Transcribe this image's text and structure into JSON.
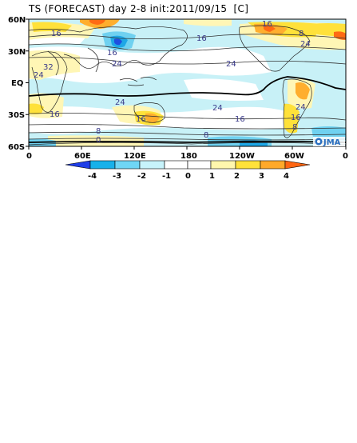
{
  "title": {
    "text": "TS (FORECAST) day 2-8 init:2011/09/15  [C]"
  },
  "map": {
    "lat_labels": [
      "60N",
      "30N",
      "EQ",
      "30S",
      "60S"
    ],
    "lon_labels": [
      "0",
      "60E",
      "120E",
      "180",
      "120W",
      "60W",
      "0"
    ],
    "contour_labels": [
      "16",
      "16",
      "16",
      "24",
      "32",
      "24",
      "24",
      "24",
      "24",
      "24",
      "16",
      "16",
      "16",
      "8",
      "0",
      "8",
      "24",
      "16",
      "8",
      "8",
      "16"
    ],
    "logo_text": "JMA",
    "shading_colors": {
      "minus4": "#1f4fe0",
      "minus3": "#1ea7e6",
      "minus2": "#6fd1f0",
      "minus1": "#c8f1f7",
      "zero": "#ffffff",
      "plus1": "#fff6b5",
      "plus2": "#ffe13a",
      "plus3": "#ffae2e",
      "plus4": "#ff6a14"
    }
  },
  "colorbar": {
    "labels": [
      "-4",
      "-3",
      "-2",
      "-1",
      "0",
      "1",
      "2",
      "3",
      "4"
    ],
    "colors": [
      "#1f3ee8",
      "#17b1ea",
      "#6fd6f5",
      "#c7f3fb",
      "#ffffff",
      "#fff7ad",
      "#ffe23a",
      "#ffa92a",
      "#ff6512"
    ]
  }
}
